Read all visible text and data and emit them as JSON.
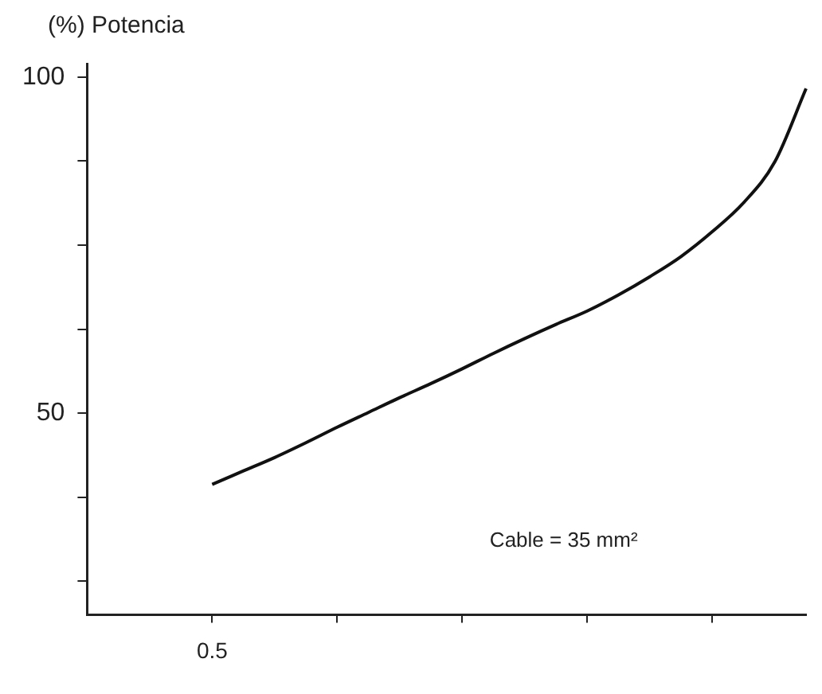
{
  "chart_data": {
    "type": "line",
    "ylabel": "(%) Potencia",
    "annotations": [
      "Cable = 35 mm²"
    ],
    "categories": [
      null,
      null,
      null,
      null,
      "0.5",
      null,
      null,
      null,
      null,
      null,
      null,
      null,
      null,
      null,
      null,
      null,
      null,
      null,
      null,
      null,
      null,
      null,
      null,
      null
    ],
    "series": [
      {
        "color": "#111111",
        "values": [
          null,
          null,
          null,
          null,
          39.4,
          41.4,
          43.4,
          45.6,
          47.9,
          50.1,
          52.3,
          54.4,
          56.6,
          58.9,
          61.1,
          63.2,
          65.2,
          67.6,
          70.3,
          73.3,
          77.0,
          81.3,
          87.4,
          98.3
        ]
      }
    ],
    "ylim": [
      20,
      102
    ],
    "yticks": [
      {
        "value": 25,
        "label": null
      },
      {
        "value": 37.5,
        "label": null
      },
      {
        "value": 50,
        "label": "50"
      },
      {
        "value": 62.5,
        "label": null
      },
      {
        "value": 75,
        "label": null
      },
      {
        "value": 87.5,
        "label": null
      },
      {
        "value": 100,
        "label": "100"
      }
    ],
    "grid": false,
    "legend": false,
    "marker": "none",
    "line_style": "solid"
  }
}
